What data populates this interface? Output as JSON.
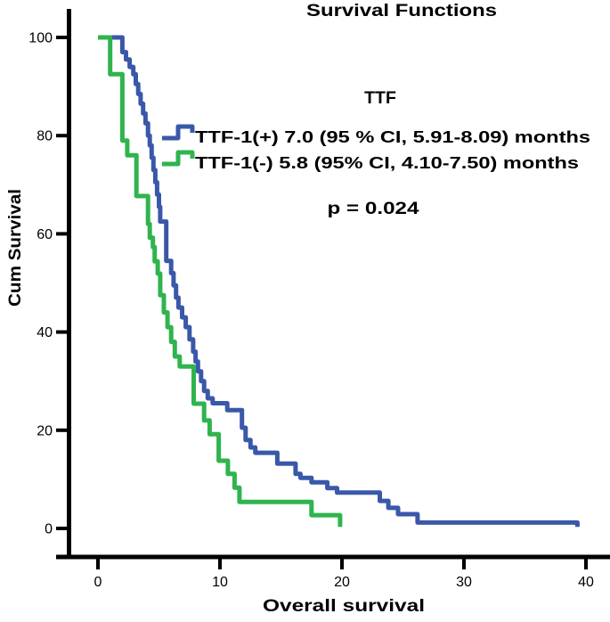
{
  "chart_data": {
    "type": "line",
    "subtype": "kaplan-meier-step",
    "title": "Survival Functions",
    "xlabel": "Overall survival",
    "ylabel": "Cum Survival",
    "legend_title": "TTF",
    "p_label": "p = 0.024",
    "x_ticks": [
      0,
      10,
      20,
      30,
      40
    ],
    "y_ticks": [
      0,
      20,
      40,
      60,
      80,
      100
    ],
    "xlim": [
      0,
      40
    ],
    "ylim": [
      0,
      100
    ],
    "grid": false,
    "legend_position": "upper right inside",
    "axis_color": "#000000",
    "series": [
      {
        "name": "TTF-1(+)",
        "label": "TTF-1(+) 7.0 (95 % CI, 5.91-8.09) months",
        "color": "#3A58A9",
        "median_months": 7.0,
        "ci": "5.91-8.09",
        "start_time": 1.1,
        "start_survival": 100,
        "steps": [
          [
            2.0,
            97
          ],
          [
            2.3,
            95.5
          ],
          [
            2.6,
            94
          ],
          [
            2.9,
            92.5
          ],
          [
            3.1,
            90.5
          ],
          [
            3.3,
            88.5
          ],
          [
            3.5,
            86.5
          ],
          [
            3.7,
            84.5
          ],
          [
            3.9,
            82.5
          ],
          [
            4.1,
            80
          ],
          [
            4.25,
            78
          ],
          [
            4.4,
            75.5
          ],
          [
            4.55,
            73
          ],
          [
            4.7,
            70.5
          ],
          [
            4.85,
            68
          ],
          [
            5.0,
            65.5
          ],
          [
            5.1,
            62.5
          ],
          [
            5.6,
            54.5
          ],
          [
            6.0,
            52
          ],
          [
            6.2,
            49.5
          ],
          [
            6.4,
            47
          ],
          [
            6.6,
            45
          ],
          [
            6.9,
            43
          ],
          [
            7.2,
            41
          ],
          [
            7.5,
            38.5
          ],
          [
            7.8,
            36
          ],
          [
            8.0,
            34
          ],
          [
            8.2,
            32
          ],
          [
            8.45,
            30
          ],
          [
            8.7,
            28
          ],
          [
            9.0,
            26.5
          ],
          [
            9.4,
            25.5
          ],
          [
            10.6,
            24.1
          ],
          [
            11.8,
            20.5
          ],
          [
            12.1,
            18
          ],
          [
            12.5,
            16.5
          ],
          [
            12.9,
            15.4
          ],
          [
            14.7,
            13.2
          ],
          [
            16.2,
            11.1
          ],
          [
            16.6,
            10.3
          ],
          [
            17.5,
            9.4
          ],
          [
            18.8,
            8.2
          ],
          [
            19.6,
            7.3
          ],
          [
            23.1,
            5.6
          ],
          [
            23.8,
            4.2
          ],
          [
            24.6,
            2.9
          ],
          [
            26.2,
            1.2
          ]
        ],
        "end_time": 39.3,
        "end_drop_to": 0.3
      },
      {
        "name": "TTF-1(-)",
        "label": "TTF-1(-) 5.8 (95% CI, 4.10-7.50) months",
        "color": "#2FB44E",
        "median_months": 5.8,
        "ci": "4.10-7.50",
        "start_time": 0.0,
        "start_survival": 100,
        "steps": [
          [
            1.0,
            92.5
          ],
          [
            2.0,
            79
          ],
          [
            2.4,
            76
          ],
          [
            3.15,
            67.7
          ],
          [
            4.1,
            62
          ],
          [
            4.25,
            59.2
          ],
          [
            4.5,
            57.3
          ],
          [
            4.65,
            54.4
          ],
          [
            4.9,
            51.9
          ],
          [
            5.1,
            47.5
          ],
          [
            5.4,
            44
          ],
          [
            5.7,
            41
          ],
          [
            6.0,
            38
          ],
          [
            6.3,
            35
          ],
          [
            6.7,
            33
          ],
          [
            7.85,
            25.4
          ],
          [
            8.7,
            22
          ],
          [
            9.15,
            19.2
          ],
          [
            9.9,
            13.8
          ],
          [
            10.65,
            11.1
          ],
          [
            11.2,
            8.3
          ],
          [
            11.6,
            5.4
          ],
          [
            17.5,
            2.7
          ]
        ],
        "end_time": 19.85,
        "end_drop_to": 0.3
      }
    ]
  }
}
